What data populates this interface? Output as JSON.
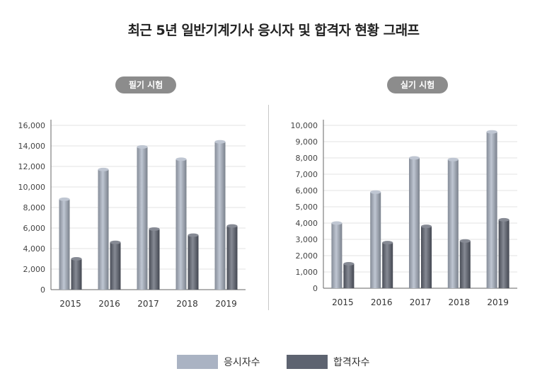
{
  "title": "최근 5년 일반기계기사 응시자 및 합격자 현황 그래프",
  "colors": {
    "applicants": "#aab3c3",
    "passers": "#5d6370",
    "pill_bg": "#8c8c8c",
    "grid": "#e3e3e3",
    "axis": "#666666"
  },
  "legend": [
    {
      "label": "응시자수",
      "color": "#aab3c3"
    },
    {
      "label": "합격자수",
      "color": "#5d6370"
    }
  ],
  "chart_data": [
    {
      "type": "bar",
      "title": "필기 시험",
      "categories": [
        "2015",
        "2016",
        "2017",
        "2018",
        "2019"
      ],
      "series": [
        {
          "name": "응시자수",
          "values": [
            8800,
            11700,
            13900,
            12700,
            14400
          ]
        },
        {
          "name": "합격자수",
          "values": [
            3000,
            4600,
            5900,
            5300,
            6200
          ]
        }
      ],
      "ylim": [
        0,
        16000
      ],
      "yticks": [
        0,
        2000,
        4000,
        6000,
        8000,
        10000,
        12000,
        14000,
        16000
      ],
      "ytick_labels": [
        "0",
        "2,000",
        "4,000",
        "6,000",
        "8,000",
        "10,000",
        "12,000",
        "14,000",
        "16,000"
      ],
      "grid": true
    },
    {
      "type": "bar",
      "title": "실기 시험",
      "categories": [
        "2015",
        "2016",
        "2017",
        "2018",
        "2019"
      ],
      "series": [
        {
          "name": "응시자수",
          "values": [
            4000,
            5900,
            8000,
            7900,
            9600
          ]
        },
        {
          "name": "합격자수",
          "values": [
            1500,
            2800,
            3800,
            2900,
            4200
          ]
        }
      ],
      "ylim": [
        0,
        10000
      ],
      "yticks": [
        0,
        1000,
        2000,
        3000,
        4000,
        5000,
        6000,
        7000,
        8000,
        9000,
        10000
      ],
      "ytick_labels": [
        "0",
        "1,000",
        "2,000",
        "3,000",
        "4,000",
        "5,000",
        "6,000",
        "7,000",
        "8,000",
        "9,000",
        "10,000"
      ],
      "grid": true
    }
  ]
}
